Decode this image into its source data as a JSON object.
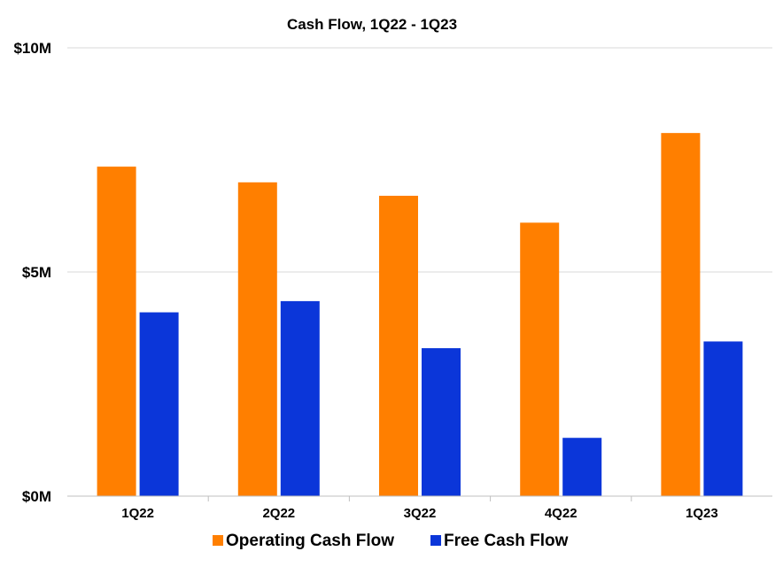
{
  "chart_data": {
    "type": "bar",
    "title": "Cash Flow, 1Q22 - 1Q23",
    "categories": [
      "1Q22",
      "2Q22",
      "3Q22",
      "4Q22",
      "1Q23"
    ],
    "series": [
      {
        "name": "Operating Cash Flow",
        "color": "#ff7f00",
        "values": [
          7.35,
          7.0,
          6.7,
          6.1,
          8.1
        ]
      },
      {
        "name": "Free Cash Flow",
        "color": "#0b36d9",
        "values": [
          4.1,
          4.35,
          3.3,
          1.3,
          3.45
        ]
      }
    ],
    "ylim": [
      0,
      10
    ],
    "yticks": [
      {
        "value": 0,
        "label": "$0M"
      },
      {
        "value": 5,
        "label": "$5M"
      },
      {
        "value": 10,
        "label": "$10M"
      }
    ],
    "grid": true,
    "legend": "bottom"
  }
}
